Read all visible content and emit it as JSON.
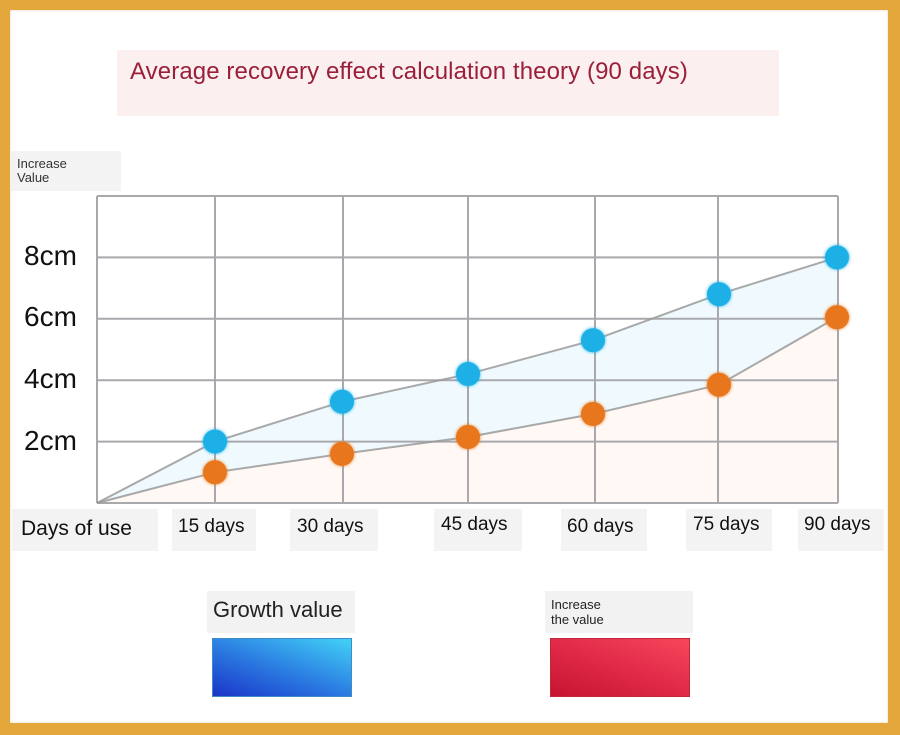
{
  "title": "Average recovery effect calculation theory (90 days)",
  "y_axis_label": [
    "Increase",
    "Value"
  ],
  "x_axis_title": "Days of use",
  "legend": [
    {
      "label": "Growth value",
      "color_start": "#1a35c9",
      "color_end": "#42d2f7"
    },
    {
      "label_lines": [
        "Increase",
        "the value"
      ],
      "color_start": "#c61430",
      "color_end": "#f8475c"
    }
  ],
  "colors": {
    "frame": "#e3a73b",
    "title_text": "#9b1f3a",
    "title_bg": "#fcefef",
    "grid": "#a9a9ad",
    "series_blue": "#1fb0e6",
    "series_orange": "#e8761c",
    "line": "#9a9a9a"
  },
  "chart_data": {
    "type": "line",
    "title": "Average recovery effect calculation theory (90 days)",
    "xlabel": "Days of use",
    "ylabel": "Increase Value",
    "categories": [
      "Days of use",
      "15 days",
      "30 days",
      "45 days",
      "60 days",
      "75 days",
      "90 days"
    ],
    "x_tick_labels": [
      "15 days",
      "30 days",
      "45 days",
      "60 days",
      "75 days",
      "90 days"
    ],
    "y_tick_labels": [
      "8cm",
      "6cm",
      "4cm",
      "2cm"
    ],
    "y_ticks": [
      8,
      6,
      4,
      2
    ],
    "ylim": [
      0,
      10
    ],
    "grid": true,
    "legend_position": "bottom",
    "series": [
      {
        "name": "Growth value",
        "color": "#1fb0e6",
        "values": [
          0,
          2.0,
          3.3,
          4.2,
          5.3,
          6.8,
          8.0
        ]
      },
      {
        "name": "Increase the value",
        "color": "#e8761c",
        "values": [
          0,
          1.0,
          1.6,
          2.15,
          2.9,
          3.85,
          6.05
        ]
      }
    ]
  }
}
